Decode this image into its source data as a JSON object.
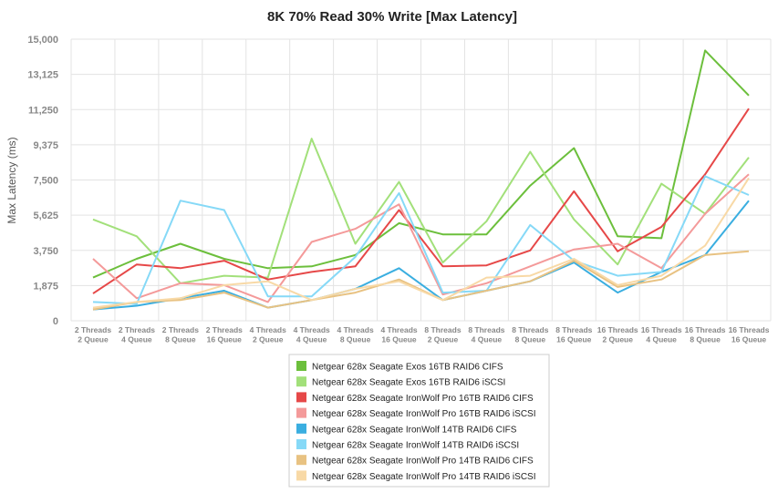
{
  "chart_data": {
    "type": "line",
    "title": "8K 70% Read 30% Write [Max Latency]",
    "ylabel": "Max Latency  (ms)",
    "xlabel": "",
    "ylim": [
      0,
      15000
    ],
    "yticks": [
      "0",
      "1,875",
      "3,750",
      "5,625",
      "7,500",
      "9,375",
      "11,250",
      "13,125",
      "15,000"
    ],
    "ytick_values": [
      0,
      1875,
      3750,
      5625,
      7500,
      9375,
      11250,
      13125,
      15000
    ],
    "grid": true,
    "legend_position": "bottom",
    "categories": [
      [
        "2 Threads",
        "2 Queue"
      ],
      [
        "2 Threads",
        "4 Queue"
      ],
      [
        "2 Threads",
        "8 Queue"
      ],
      [
        "2 Threads",
        "16 Queue"
      ],
      [
        "4 Threads",
        "2 Queue"
      ],
      [
        "4 Threads",
        "4 Queue"
      ],
      [
        "4 Threads",
        "8 Queue"
      ],
      [
        "4 Threads",
        "16 Queue"
      ],
      [
        "8 Threads",
        "2 Queue"
      ],
      [
        "8 Threads",
        "4 Queue"
      ],
      [
        "8 Threads",
        "8 Queue"
      ],
      [
        "8 Threads",
        "16 Queue"
      ],
      [
        "16 Threads",
        "2 Queue"
      ],
      [
        "16 Threads",
        "4 Queue"
      ],
      [
        "16 Threads",
        "8 Queue"
      ],
      [
        "16 Threads",
        "16 Queue"
      ]
    ],
    "series": [
      {
        "name": "Netgear 628x Seagate Exos 16TB RAID6 CIFS",
        "color": "#6cbf3c",
        "values": [
          2300,
          3300,
          4100,
          3300,
          2800,
          2900,
          3500,
          5200,
          4600,
          4600,
          7200,
          9200,
          4500,
          4400,
          14400,
          12000
        ]
      },
      {
        "name": "Netgear 628x Seagate Exos 16TB RAID6 iSCSI",
        "color": "#a2e07a",
        "values": [
          5400,
          4500,
          2000,
          2400,
          2300,
          9700,
          4100,
          7400,
          3100,
          5300,
          9000,
          5400,
          3000,
          7300,
          5700,
          8700
        ]
      },
      {
        "name": "Netgear 628x Seagate IronWolf Pro 16TB RAID6 CIFS",
        "color": "#e64848",
        "values": [
          1450,
          3000,
          2800,
          3200,
          2200,
          2600,
          2900,
          5900,
          2900,
          2950,
          3750,
          6900,
          3700,
          5000,
          7800,
          11300
        ]
      },
      {
        "name": "Netgear 628x Seagate IronWolf Pro 16TB RAID6 iSCSI",
        "color": "#f49a9a",
        "values": [
          3300,
          1200,
          2000,
          1900,
          1000,
          4200,
          4900,
          6200,
          1400,
          2000,
          2900,
          3800,
          4100,
          2800,
          5700,
          7800
        ]
      },
      {
        "name": "Netgear 628x Seagate IronWolf 14TB RAID6 CIFS",
        "color": "#3aaee0",
        "values": [
          600,
          800,
          1200,
          1600,
          700,
          1100,
          1700,
          2800,
          1100,
          1600,
          2100,
          3100,
          1500,
          2600,
          3500,
          6400
        ]
      },
      {
        "name": "Netgear 628x Seagate IronWolf 14TB RAID6 iSCSI",
        "color": "#86d9f7",
        "values": [
          1000,
          900,
          6400,
          5900,
          1300,
          1300,
          3400,
          6800,
          1500,
          1600,
          5100,
          3200,
          2400,
          2600,
          7700,
          6700
        ]
      },
      {
        "name": "Netgear 628x Seagate IronWolf Pro 14TB RAID6 CIFS",
        "color": "#e8c282",
        "values": [
          600,
          1000,
          1100,
          1500,
          700,
          1100,
          1500,
          2200,
          1100,
          1600,
          2100,
          3200,
          1800,
          2200,
          3500,
          3700
        ]
      },
      {
        "name": "Netgear 628x Seagate IronWolf Pro 14TB RAID6 iSCSI",
        "color": "#f8d9a6",
        "values": [
          700,
          1000,
          1200,
          1900,
          2100,
          1100,
          1700,
          2100,
          1100,
          2300,
          2400,
          3300,
          1900,
          2400,
          4000,
          7600
        ]
      }
    ]
  }
}
